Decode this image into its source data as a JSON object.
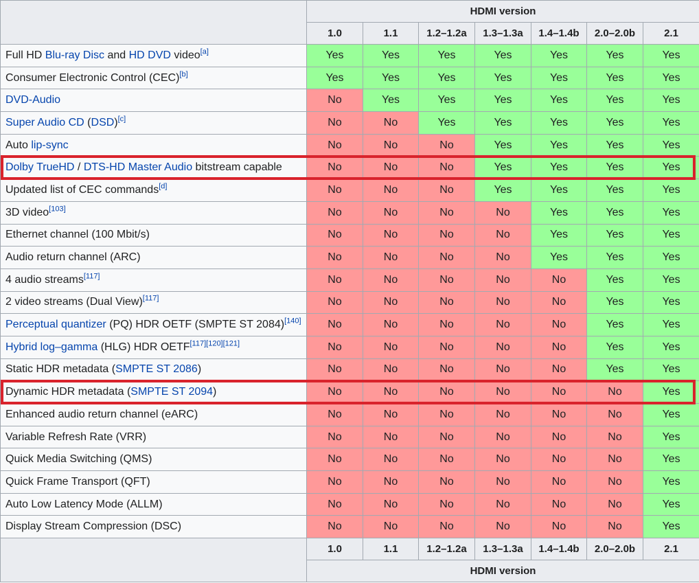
{
  "header_title": "HDMI version",
  "versions": [
    "1.0",
    "1.1",
    "1.2–1.2a",
    "1.3–1.3a",
    "1.4–1.4b",
    "2.0–2.0b",
    "2.1"
  ],
  "footer_title": "HDMI version",
  "yes_label": "Yes",
  "no_label": "No",
  "colors": {
    "yes": "#99ff99",
    "no": "#ff9999",
    "highlight": "#d9232c",
    "link": "#0645ad"
  },
  "rows": [
    {
      "segments": [
        {
          "t": "Full HD "
        },
        {
          "t": "Blu-ray Disc",
          "link": true
        },
        {
          "t": " and "
        },
        {
          "t": "HD DVD",
          "link": true
        },
        {
          "t": " video"
        },
        {
          "t": "[a]",
          "sup": true
        }
      ],
      "first_yes": 0
    },
    {
      "segments": [
        {
          "t": "Consumer Electronic Control (CEC)"
        },
        {
          "t": "[b]",
          "sup": true
        }
      ],
      "first_yes": 0
    },
    {
      "segments": [
        {
          "t": "DVD-Audio",
          "link": true
        }
      ],
      "first_yes": 1
    },
    {
      "segments": [
        {
          "t": "Super Audio CD",
          "link": true
        },
        {
          "t": " ("
        },
        {
          "t": "DSD",
          "link": true
        },
        {
          "t": ")"
        },
        {
          "t": "[c]",
          "sup": true
        }
      ],
      "first_yes": 2
    },
    {
      "segments": [
        {
          "t": "Auto "
        },
        {
          "t": "lip-sync",
          "link": true
        }
      ],
      "first_yes": 3
    },
    {
      "segments": [
        {
          "t": "Dolby TrueHD",
          "link": true
        },
        {
          "t": " / "
        },
        {
          "t": "DTS-HD Master Audio",
          "link": true
        },
        {
          "t": " bitstream capable"
        }
      ],
      "first_yes": 3,
      "highlighted": true
    },
    {
      "segments": [
        {
          "t": "Updated list of CEC commands"
        },
        {
          "t": "[d]",
          "sup": true
        }
      ],
      "first_yes": 3
    },
    {
      "segments": [
        {
          "t": "3D video"
        },
        {
          "t": "[103]",
          "sup": true
        }
      ],
      "first_yes": 4
    },
    {
      "segments": [
        {
          "t": "Ethernet channel (100 Mbit/s)"
        }
      ],
      "first_yes": 4
    },
    {
      "segments": [
        {
          "t": "Audio return channel (ARC)"
        }
      ],
      "first_yes": 4
    },
    {
      "segments": [
        {
          "t": "4 audio streams"
        },
        {
          "t": "[117]",
          "sup": true
        }
      ],
      "first_yes": 5
    },
    {
      "segments": [
        {
          "t": "2 video streams (Dual View)"
        },
        {
          "t": "[117]",
          "sup": true
        }
      ],
      "first_yes": 5
    },
    {
      "segments": [
        {
          "t": "Perceptual quantizer",
          "link": true
        },
        {
          "t": " (PQ) HDR OETF (SMPTE ST 2084)"
        },
        {
          "t": "[140]",
          "sup": true
        }
      ],
      "first_yes": 5
    },
    {
      "segments": [
        {
          "t": "Hybrid log–gamma",
          "link": true
        },
        {
          "t": " (HLG) HDR OETF"
        },
        {
          "t": "[117][120][121]",
          "sup": true
        }
      ],
      "first_yes": 5
    },
    {
      "segments": [
        {
          "t": "Static HDR metadata ("
        },
        {
          "t": "SMPTE ST 2086",
          "link": true
        },
        {
          "t": ")"
        }
      ],
      "first_yes": 5
    },
    {
      "segments": [
        {
          "t": "Dynamic HDR metadata ("
        },
        {
          "t": "SMPTE ST 2094",
          "link": true
        },
        {
          "t": ")"
        }
      ],
      "first_yes": 6,
      "highlighted": true
    },
    {
      "segments": [
        {
          "t": "Enhanced audio return channel (eARC)"
        }
      ],
      "first_yes": 6
    },
    {
      "segments": [
        {
          "t": "Variable Refresh Rate (VRR)"
        }
      ],
      "first_yes": 6
    },
    {
      "segments": [
        {
          "t": "Quick Media Switching (QMS)"
        }
      ],
      "first_yes": 6
    },
    {
      "segments": [
        {
          "t": "Quick Frame Transport (QFT)"
        }
      ],
      "first_yes": 6
    },
    {
      "segments": [
        {
          "t": "Auto Low Latency Mode (ALLM)"
        }
      ],
      "first_yes": 6
    },
    {
      "segments": [
        {
          "t": "Display Stream Compression (DSC)"
        }
      ],
      "first_yes": 6
    }
  ]
}
